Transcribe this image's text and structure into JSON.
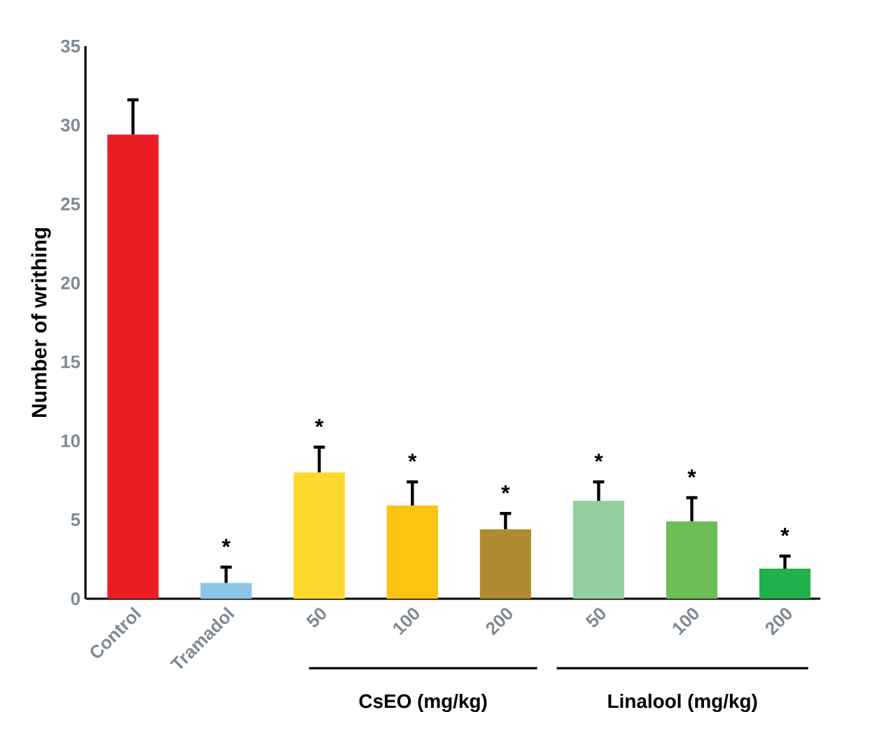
{
  "chart_data": {
    "type": "bar",
    "ylabel": "Number of writhing",
    "categories": [
      "Control",
      "Tramadol",
      "50",
      "100",
      "200",
      "50",
      "100",
      "200"
    ],
    "values": [
      29.4,
      1.0,
      8.0,
      5.9,
      4.4,
      6.2,
      4.9,
      1.9
    ],
    "errors": [
      2.2,
      1.0,
      1.6,
      1.5,
      1.0,
      1.2,
      1.5,
      0.8
    ],
    "value_labels": [
      null,
      "*",
      "*",
      "*",
      "*",
      "*",
      "*",
      "*"
    ],
    "colors": [
      "#ec1c24",
      "#8cc4e8",
      "#fdd92c",
      "#fdc311",
      "#b08a30",
      "#92d0a0",
      "#6cbe55",
      "#21b04b"
    ],
    "ylim": [
      0,
      35
    ],
    "yticks": [
      0,
      5,
      10,
      15,
      20,
      25,
      30,
      35
    ],
    "annotations": [
      "CsEO (mg/kg)",
      "Linalool (mg/kg)"
    ]
  }
}
